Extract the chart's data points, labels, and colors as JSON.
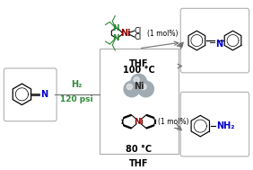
{
  "bg_color": "#ffffff",
  "box_color": "#b0b0b0",
  "green_color": "#2e8b3a",
  "blue_color": "#0000cc",
  "dark_red": "#8b0000",
  "dark_green": "#2e8b3a",
  "ni_gray": "#a0aab2",
  "ni_gray2": "#b8c0c8",
  "arrow_color": "#707070",
  "h2_text": "H₂",
  "psi_text": "120 psi",
  "thf_top": "THF",
  "temp_top": "100 °C",
  "thf_bot": "THF",
  "temp_bot": "80 °C",
  "mol_pct": "(1 mol%)",
  "nh2_text": "NH₂",
  "ni_text": "Ni",
  "n_blue": "N"
}
